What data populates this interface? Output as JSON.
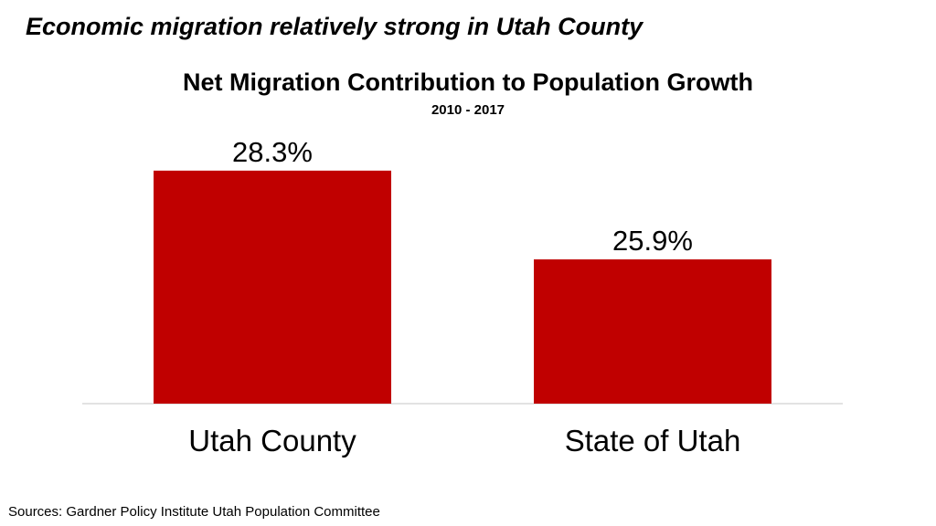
{
  "headline": "Economic migration relatively strong in Utah County",
  "footer": {
    "sources": "Sources:  Gardner Policy Institute Utah Population Committee"
  },
  "chart_data": {
    "type": "bar",
    "title": "Net Migration Contribution to Population Growth",
    "subtitle": "2010 - 2017",
    "categories": [
      "Utah County",
      "State of Utah"
    ],
    "values": [
      28.3,
      25.9
    ],
    "value_labels": [
      "28.3%",
      "25.9%"
    ],
    "unit": "%",
    "ylim": [
      22.0,
      30.0
    ],
    "grid": false,
    "legend": "none",
    "bar_color": "#c00000"
  }
}
